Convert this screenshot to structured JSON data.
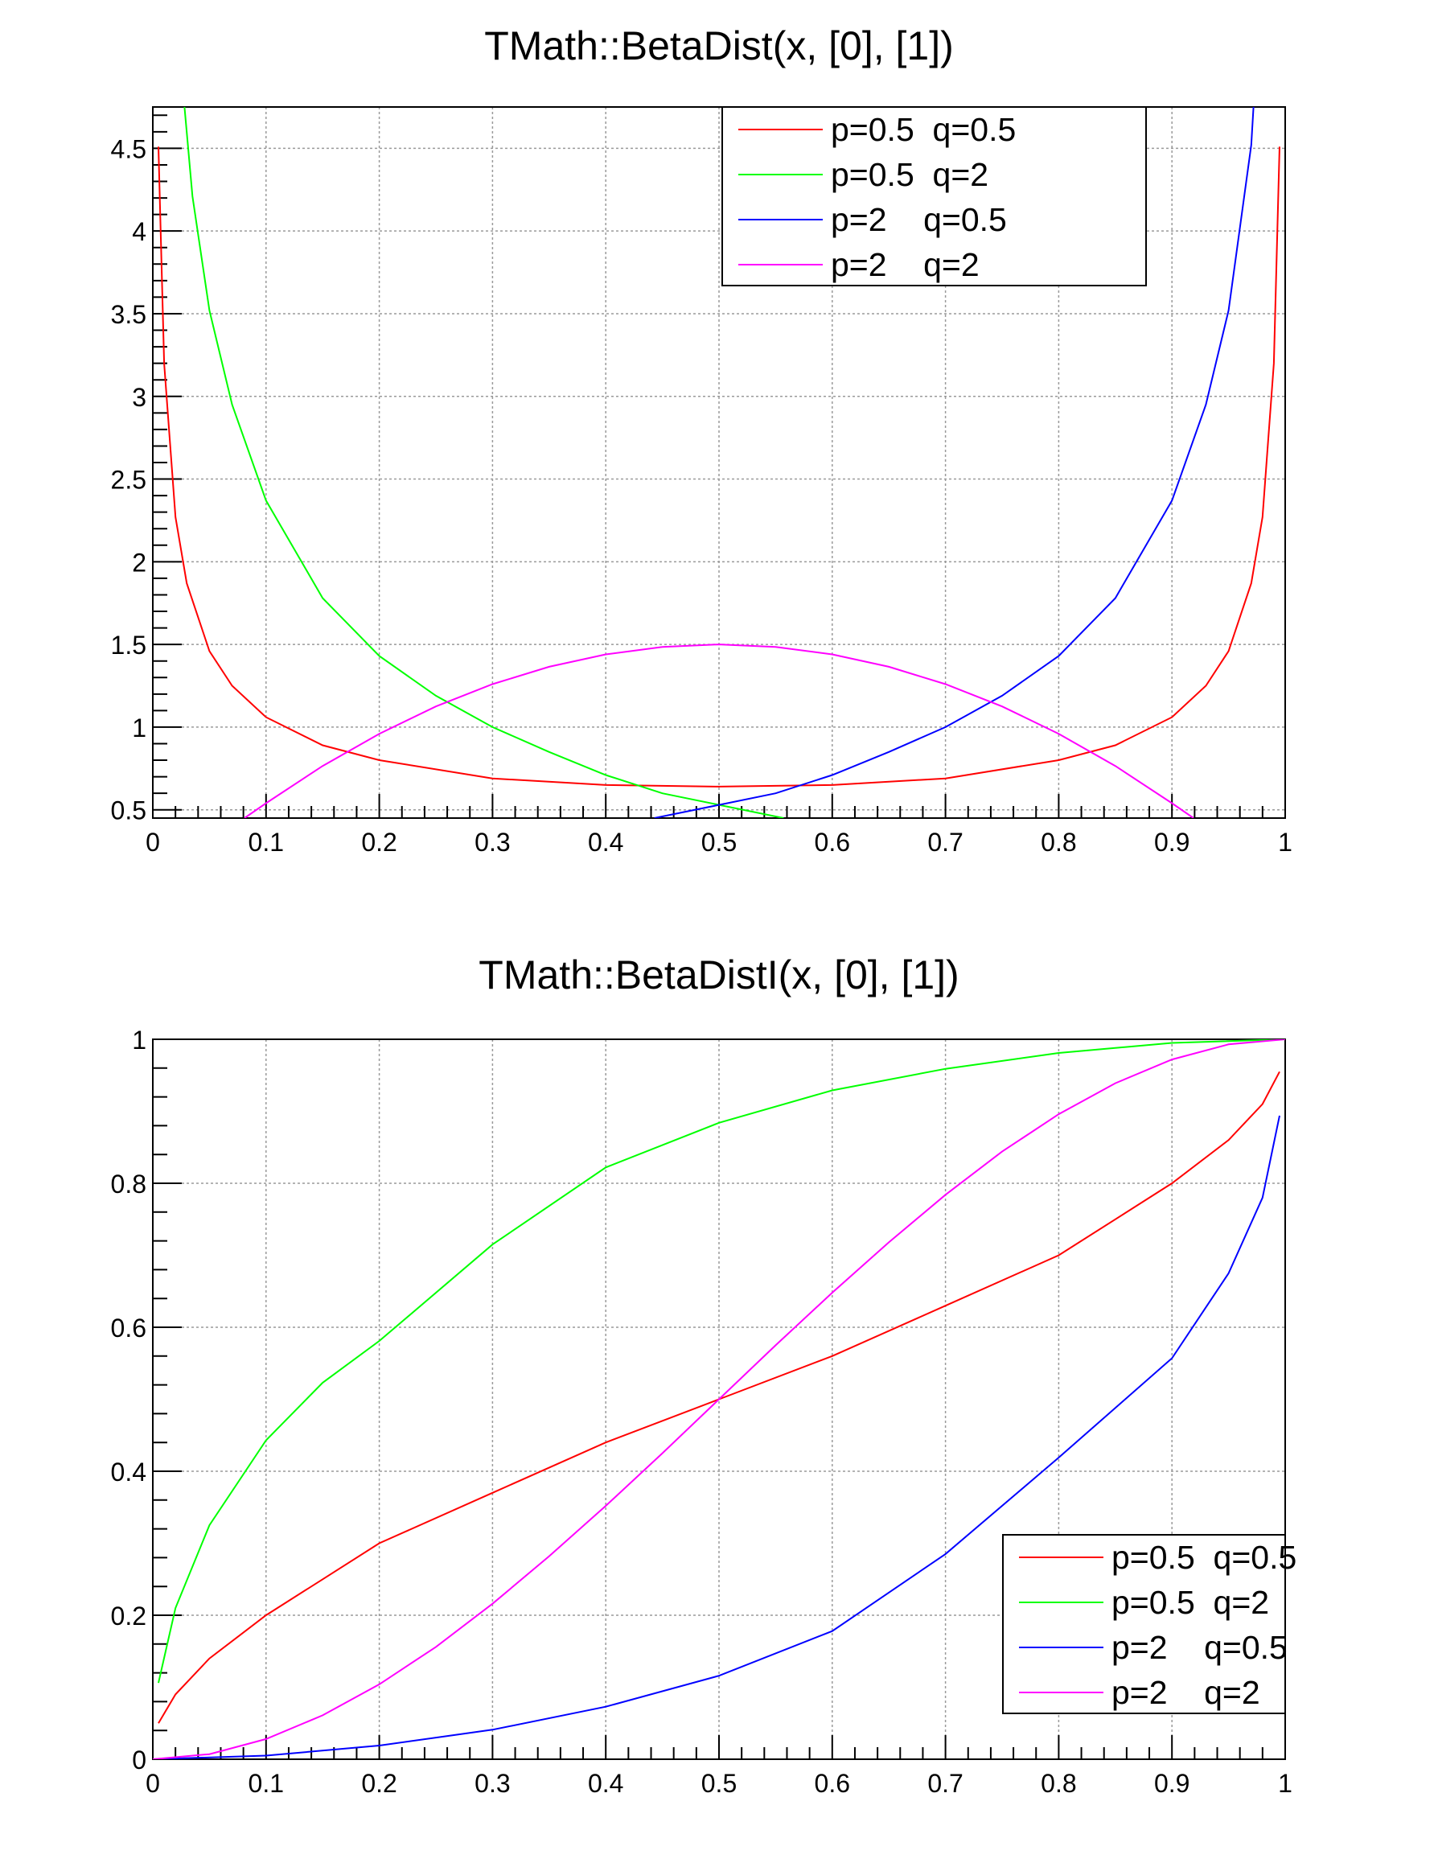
{
  "chart_data": [
    {
      "type": "line",
      "title": "TMath::BetaDist(x, [0], [1])",
      "xlabel": "",
      "ylabel": "",
      "xlim": [
        0,
        1
      ],
      "ylim": [
        0.45,
        4.75
      ],
      "x_ticks": [
        "0",
        "0.1",
        "0.2",
        "0.3",
        "0.4",
        "0.5",
        "0.6",
        "0.7",
        "0.8",
        "0.9",
        "1"
      ],
      "y_ticks": [
        "0.5",
        "1",
        "1.5",
        "2",
        "2.5",
        "3",
        "3.5",
        "4",
        "4.5"
      ],
      "grid": true,
      "legend_position": "top-right",
      "series": [
        {
          "name": "p=0.5  q=0.5",
          "color": "#ff0000",
          "x": [
            0.005,
            0.01,
            0.02,
            0.03,
            0.05,
            0.07,
            0.1,
            0.15,
            0.2,
            0.3,
            0.4,
            0.5,
            0.6,
            0.7,
            0.8,
            0.85,
            0.9,
            0.93,
            0.95,
            0.97,
            0.98,
            0.99,
            0.995
          ],
          "y": [
            4.51,
            3.2,
            2.27,
            1.87,
            1.46,
            1.25,
            1.06,
            0.89,
            0.8,
            0.69,
            0.65,
            0.64,
            0.65,
            0.69,
            0.8,
            0.89,
            1.06,
            1.25,
            1.46,
            1.87,
            2.27,
            3.2,
            4.51
          ]
        },
        {
          "name": "p=0.5  q=2",
          "color": "#00ff00",
          "x": [
            0.028,
            0.035,
            0.05,
            0.07,
            0.1,
            0.15,
            0.2,
            0.25,
            0.3,
            0.35,
            0.4,
            0.45,
            0.5,
            0.557
          ],
          "y": [
            4.75,
            4.21,
            3.52,
            2.95,
            2.37,
            1.78,
            1.43,
            1.19,
            1.0,
            0.85,
            0.71,
            0.6,
            0.53,
            0.45
          ]
        },
        {
          "name": "p=2    q=0.5",
          "color": "#0000ff",
          "x": [
            0.443,
            0.5,
            0.55,
            0.6,
            0.65,
            0.7,
            0.75,
            0.8,
            0.85,
            0.9,
            0.93,
            0.95,
            0.97,
            0.972
          ],
          "y": [
            0.45,
            0.53,
            0.6,
            0.71,
            0.85,
            1.0,
            1.19,
            1.43,
            1.78,
            2.37,
            2.95,
            3.52,
            4.52,
            4.75
          ]
        },
        {
          "name": "p=2    q=2",
          "color": "#ff00ff",
          "x": [
            0.081,
            0.1,
            0.15,
            0.2,
            0.25,
            0.3,
            0.35,
            0.4,
            0.45,
            0.5,
            0.55,
            0.6,
            0.65,
            0.7,
            0.75,
            0.8,
            0.85,
            0.9,
            0.919
          ],
          "y": [
            0.45,
            0.54,
            0.765,
            0.96,
            1.125,
            1.26,
            1.365,
            1.44,
            1.485,
            1.5,
            1.485,
            1.44,
            1.365,
            1.26,
            1.125,
            0.96,
            0.765,
            0.54,
            0.45
          ]
        }
      ]
    },
    {
      "type": "line",
      "title": "TMath::BetaDistI(x, [0], [1])",
      "xlabel": "",
      "ylabel": "",
      "xlim": [
        0,
        1
      ],
      "ylim": [
        0,
        1
      ],
      "x_ticks": [
        "0",
        "0.1",
        "0.2",
        "0.3",
        "0.4",
        "0.5",
        "0.6",
        "0.7",
        "0.8",
        "0.9",
        "1"
      ],
      "y_ticks": [
        "0",
        "0.2",
        "0.4",
        "0.6",
        "0.8",
        "1"
      ],
      "grid": true,
      "legend_position": "bottom-right",
      "series": [
        {
          "name": "p=0.5  q=0.5",
          "color": "#ff0000",
          "x": [
            0.005,
            0.02,
            0.05,
            0.1,
            0.15,
            0.2,
            0.3,
            0.4,
            0.5,
            0.6,
            0.7,
            0.8,
            0.85,
            0.9,
            0.95,
            0.98,
            0.995
          ],
          "y": [
            0.05,
            0.09,
            0.14,
            0.2,
            0.25,
            0.3,
            0.37,
            0.44,
            0.5,
            0.56,
            0.63,
            0.7,
            0.75,
            0.8,
            0.86,
            0.91,
            0.955
          ]
        },
        {
          "name": "p=0.5  q=2",
          "color": "#00ff00",
          "x": [
            0.005,
            0.02,
            0.05,
            0.1,
            0.15,
            0.2,
            0.3,
            0.4,
            0.5,
            0.6,
            0.7,
            0.8,
            0.9,
            1.0
          ],
          "y": [
            0.106,
            0.21,
            0.325,
            0.443,
            0.523,
            0.581,
            0.715,
            0.822,
            0.884,
            0.929,
            0.959,
            0.981,
            0.995,
            1.0
          ]
        },
        {
          "name": "p=2    q=0.5",
          "color": "#0000ff",
          "x": [
            0.0,
            0.1,
            0.2,
            0.3,
            0.4,
            0.5,
            0.6,
            0.7,
            0.8,
            0.9,
            0.95,
            0.98,
            0.995
          ],
          "y": [
            0.0,
            0.005,
            0.019,
            0.041,
            0.073,
            0.116,
            0.178,
            0.285,
            0.419,
            0.557,
            0.675,
            0.78,
            0.894
          ]
        },
        {
          "name": "p=2    q=2",
          "color": "#ff00ff",
          "x": [
            0.0,
            0.05,
            0.1,
            0.15,
            0.2,
            0.25,
            0.3,
            0.35,
            0.4,
            0.45,
            0.5,
            0.55,
            0.6,
            0.65,
            0.7,
            0.75,
            0.8,
            0.85,
            0.9,
            0.95,
            1.0
          ],
          "y": [
            0.0,
            0.007,
            0.028,
            0.061,
            0.104,
            0.156,
            0.216,
            0.282,
            0.352,
            0.425,
            0.5,
            0.575,
            0.648,
            0.718,
            0.784,
            0.844,
            0.896,
            0.939,
            0.972,
            0.993,
            1.0
          ]
        }
      ]
    }
  ]
}
